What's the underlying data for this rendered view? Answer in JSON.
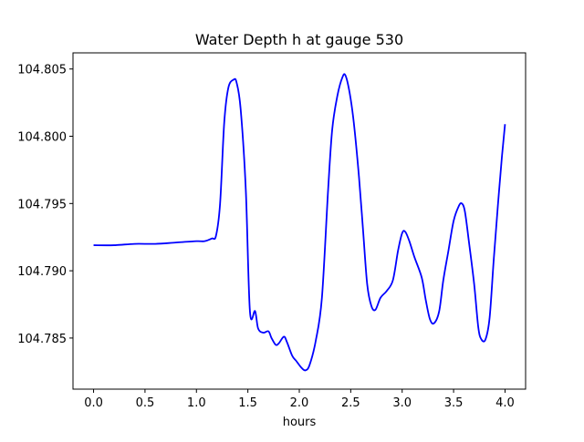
{
  "chart_data": {
    "type": "line",
    "title": "Water Depth h at gauge 530",
    "xlabel": "hours",
    "ylabel": "",
    "xlim": [
      -0.2,
      4.2
    ],
    "ylim": [
      104.7812,
      104.8062
    ],
    "xticks": [
      0.0,
      0.5,
      1.0,
      1.5,
      2.0,
      2.5,
      3.0,
      3.5,
      4.0
    ],
    "xtick_labels": [
      "0.0",
      "0.5",
      "1.0",
      "1.5",
      "2.0",
      "2.5",
      "3.0",
      "3.5",
      "4.0"
    ],
    "yticks": [
      104.785,
      104.79,
      104.795,
      104.8,
      104.805
    ],
    "ytick_labels": [
      "104.785",
      "104.790",
      "104.795",
      "104.800",
      "104.805"
    ],
    "grid": false,
    "series": [
      {
        "color": "#0000ff",
        "points": [
          [
            0.0,
            104.7919
          ],
          [
            0.2,
            104.7919
          ],
          [
            0.4,
            104.792
          ],
          [
            0.6,
            104.792
          ],
          [
            0.8,
            104.7921
          ],
          [
            1.0,
            104.7922
          ],
          [
            1.08,
            104.7922
          ],
          [
            1.15,
            104.7924
          ],
          [
            1.19,
            104.7926
          ],
          [
            1.23,
            104.795
          ],
          [
            1.27,
            104.801
          ],
          [
            1.31,
            104.8036
          ],
          [
            1.36,
            104.8042
          ],
          [
            1.39,
            104.804
          ],
          [
            1.43,
            104.802
          ],
          [
            1.48,
            104.796
          ],
          [
            1.52,
            104.787
          ],
          [
            1.57,
            104.787
          ],
          [
            1.6,
            104.7857
          ],
          [
            1.65,
            104.7854
          ],
          [
            1.7,
            104.7855
          ],
          [
            1.73,
            104.785
          ],
          [
            1.77,
            104.7845
          ],
          [
            1.8,
            104.7846
          ],
          [
            1.85,
            104.7851
          ],
          [
            1.88,
            104.7847
          ],
          [
            1.93,
            104.7837
          ],
          [
            1.97,
            104.7833
          ],
          [
            2.02,
            104.7828
          ],
          [
            2.06,
            104.7826
          ],
          [
            2.1,
            104.783
          ],
          [
            2.16,
            104.7848
          ],
          [
            2.22,
            104.788
          ],
          [
            2.28,
            104.796
          ],
          [
            2.32,
            104.8005
          ],
          [
            2.37,
            104.803
          ],
          [
            2.42,
            104.8044
          ],
          [
            2.45,
            104.8045
          ],
          [
            2.49,
            104.8032
          ],
          [
            2.53,
            104.801
          ],
          [
            2.58,
            104.797
          ],
          [
            2.62,
            104.793
          ],
          [
            2.66,
            104.789
          ],
          [
            2.7,
            104.7874
          ],
          [
            2.74,
            104.7871
          ],
          [
            2.79,
            104.788
          ],
          [
            2.85,
            104.7885
          ],
          [
            2.91,
            104.7893
          ],
          [
            2.96,
            104.7915
          ],
          [
            3.0,
            104.7928
          ],
          [
            3.03,
            104.7929
          ],
          [
            3.07,
            104.7922
          ],
          [
            3.12,
            104.791
          ],
          [
            3.19,
            104.7895
          ],
          [
            3.23,
            104.7878
          ],
          [
            3.27,
            104.7864
          ],
          [
            3.31,
            104.7861
          ],
          [
            3.36,
            104.787
          ],
          [
            3.4,
            104.7893
          ],
          [
            3.45,
            104.7915
          ],
          [
            3.5,
            104.7937
          ],
          [
            3.55,
            104.7948
          ],
          [
            3.58,
            104.795
          ],
          [
            3.61,
            104.7944
          ],
          [
            3.65,
            104.7921
          ],
          [
            3.7,
            104.789
          ],
          [
            3.74,
            104.7858
          ],
          [
            3.77,
            104.7849
          ],
          [
            3.81,
            104.7849
          ],
          [
            3.85,
            104.7865
          ],
          [
            3.89,
            104.7908
          ],
          [
            3.93,
            104.7948
          ],
          [
            3.97,
            104.7985
          ],
          [
            4.0,
            104.8009
          ]
        ]
      }
    ]
  }
}
